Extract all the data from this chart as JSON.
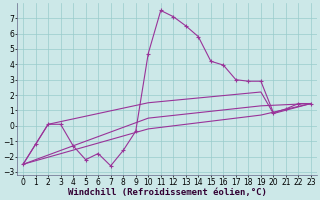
{
  "background_color": "#cce8e8",
  "grid_color": "#99cccc",
  "line_color": "#993399",
  "xlabel": "Windchill (Refroidissement éolien,°C)",
  "xlabel_fontsize": 6.5,
  "tick_fontsize": 5.5,
  "xlim": [
    -0.5,
    23.5
  ],
  "ylim": [
    -3.2,
    8.0
  ],
  "xticks": [
    0,
    1,
    2,
    3,
    4,
    5,
    6,
    7,
    8,
    9,
    10,
    11,
    12,
    13,
    14,
    15,
    16,
    17,
    18,
    19,
    20,
    21,
    22,
    23
  ],
  "yticks": [
    -3,
    -2,
    -1,
    0,
    1,
    2,
    3,
    4,
    5,
    6,
    7
  ],
  "series_main": [
    [
      0,
      -2.5
    ],
    [
      1,
      -1.2
    ],
    [
      2,
      0.1
    ],
    [
      3,
      0.1
    ],
    [
      4,
      -1.3
    ],
    [
      5,
      -2.2
    ],
    [
      6,
      -1.8
    ],
    [
      7,
      -2.6
    ],
    [
      8,
      -1.6
    ],
    [
      9,
      -0.35
    ],
    [
      10,
      4.7
    ],
    [
      11,
      7.5
    ],
    [
      12,
      7.1
    ],
    [
      13,
      6.5
    ],
    [
      14,
      5.8
    ],
    [
      15,
      4.2
    ],
    [
      16,
      3.95
    ],
    [
      17,
      3.0
    ],
    [
      18,
      2.9
    ],
    [
      19,
      2.9
    ],
    [
      20,
      0.85
    ],
    [
      21,
      1.1
    ],
    [
      22,
      1.45
    ],
    [
      23,
      1.45
    ]
  ],
  "series_smooth1": [
    [
      0,
      -2.5
    ],
    [
      2,
      0.1
    ],
    [
      10,
      1.5
    ],
    [
      19,
      2.2
    ],
    [
      20,
      0.8
    ],
    [
      23,
      1.45
    ]
  ],
  "series_smooth2": [
    [
      0,
      -2.5
    ],
    [
      10,
      0.5
    ],
    [
      19,
      1.3
    ],
    [
      23,
      1.45
    ]
  ],
  "series_smooth3": [
    [
      0,
      -2.5
    ],
    [
      10,
      -0.2
    ],
    [
      19,
      0.7
    ],
    [
      23,
      1.45
    ]
  ]
}
